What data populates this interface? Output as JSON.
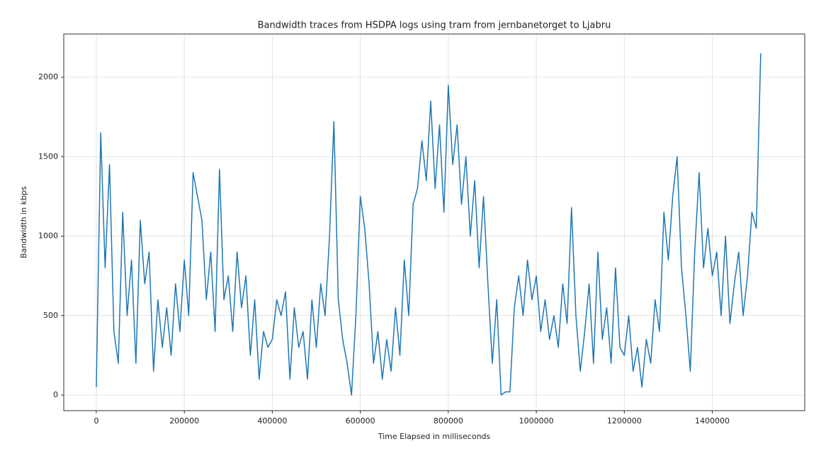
{
  "chart_data": {
    "type": "line",
    "title": "Bandwidth traces from HSDPA logs using tram from jernbanetorget to Ljabru",
    "xlabel": "Time Elapsed in milliseconds",
    "ylabel": "Bandwidth in kbps",
    "color": "#1f77b4",
    "grid": true,
    "xlim": [
      -74000,
      1610000
    ],
    "ylim": [
      -98,
      2272
    ],
    "xticks": [
      0,
      200000,
      400000,
      600000,
      800000,
      1000000,
      1200000,
      1400000
    ],
    "yticks": [
      0,
      500,
      1000,
      1500,
      2000
    ],
    "x": [
      0,
      10000,
      20000,
      30000,
      40000,
      50000,
      60000,
      70000,
      80000,
      90000,
      100000,
      110000,
      120000,
      130000,
      140000,
      150000,
      160000,
      170000,
      180000,
      190000,
      200000,
      210000,
      220000,
      230000,
      240000,
      250000,
      260000,
      270000,
      280000,
      290000,
      300000,
      310000,
      320000,
      330000,
      340000,
      350000,
      360000,
      370000,
      380000,
      390000,
      400000,
      410000,
      420000,
      430000,
      440000,
      450000,
      460000,
      470000,
      480000,
      490000,
      500000,
      510000,
      520000,
      530000,
      540000,
      550000,
      560000,
      570000,
      580000,
      590000,
      600000,
      610000,
      620000,
      630000,
      640000,
      650000,
      660000,
      670000,
      680000,
      690000,
      700000,
      710000,
      720000,
      730000,
      740000,
      750000,
      760000,
      770000,
      780000,
      790000,
      800000,
      810000,
      820000,
      830000,
      840000,
      850000,
      860000,
      870000,
      880000,
      890000,
      900000,
      910000,
      920000,
      930000,
      940000,
      950000,
      960000,
      970000,
      980000,
      990000,
      1000000,
      1010000,
      1020000,
      1030000,
      1040000,
      1050000,
      1060000,
      1070000,
      1080000,
      1090000,
      1100000,
      1110000,
      1120000,
      1130000,
      1140000,
      1150000,
      1160000,
      1170000,
      1180000,
      1190000,
      1200000,
      1210000,
      1220000,
      1230000,
      1240000,
      1250000,
      1260000,
      1270000,
      1280000,
      1290000,
      1300000,
      1310000,
      1320000,
      1330000,
      1340000,
      1350000,
      1360000,
      1370000,
      1380000,
      1390000,
      1400000,
      1410000,
      1420000,
      1430000,
      1440000,
      1450000,
      1460000,
      1470000,
      1480000,
      1490000,
      1500000,
      1510000
    ],
    "values": [
      50,
      1650,
      800,
      1450,
      400,
      200,
      1150,
      500,
      850,
      200,
      1100,
      700,
      900,
      150,
      600,
      300,
      550,
      250,
      700,
      400,
      850,
      500,
      1400,
      1250,
      1100,
      600,
      900,
      400,
      1420,
      600,
      750,
      400,
      900,
      550,
      750,
      250,
      600,
      100,
      400,
      300,
      350,
      600,
      500,
      650,
      100,
      550,
      300,
      400,
      100,
      600,
      300,
      700,
      500,
      1000,
      1720,
      600,
      350,
      200,
      0,
      500,
      1250,
      1050,
      700,
      200,
      400,
      100,
      350,
      150,
      550,
      250,
      850,
      500,
      1200,
      1300,
      1600,
      1350,
      1850,
      1300,
      1700,
      1150,
      1950,
      1450,
      1700,
      1200,
      1500,
      1000,
      1350,
      800,
      1250,
      700,
      200,
      600,
      0,
      20,
      20,
      550,
      750,
      500,
      850,
      600,
      750,
      400,
      600,
      350,
      500,
      300,
      700,
      450,
      1180,
      500,
      150,
      400,
      700,
      200,
      900,
      350,
      550,
      200,
      800,
      300,
      250,
      500,
      150,
      300,
      50,
      350,
      200,
      600,
      400,
      1150,
      850,
      1250,
      1500,
      800,
      500,
      150,
      900,
      1400,
      800,
      1050,
      750,
      900,
      500,
      1000,
      450,
      700,
      900,
      500,
      750,
      1150,
      1050,
      2150
    ]
  }
}
